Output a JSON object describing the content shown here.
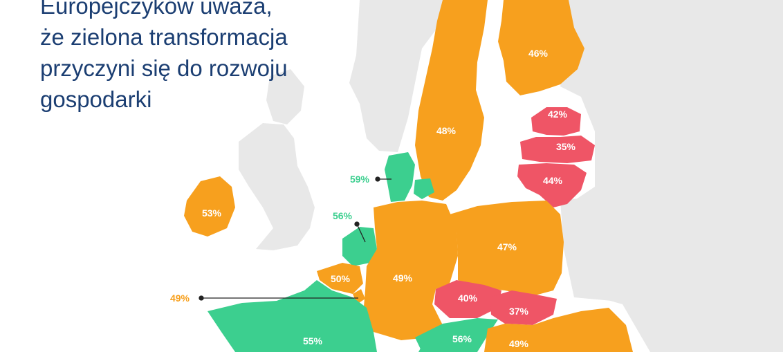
{
  "title_lines": [
    "Europejczyków uważa,",
    "że zielona transformacja",
    "przyczyni się do rozwoju",
    "gospodarki"
  ],
  "colors": {
    "orange": "#f7a01e",
    "red": "#ef5566",
    "green": "#3ccf8f",
    "land": "#e8e8e8",
    "sea": "#ffffff",
    "title": "#1b3e72"
  },
  "countries": [
    {
      "id": "finland",
      "label": "46%",
      "color": "orange"
    },
    {
      "id": "sweden",
      "label": "48%",
      "color": "orange"
    },
    {
      "id": "estonia",
      "label": "42%",
      "color": "red"
    },
    {
      "id": "latvia",
      "label": "35%",
      "color": "red"
    },
    {
      "id": "lithuania",
      "label": "44%",
      "color": "red"
    },
    {
      "id": "denmark",
      "label": "59%",
      "color": "green"
    },
    {
      "id": "ireland",
      "label": "53%",
      "color": "orange"
    },
    {
      "id": "netherlands",
      "label": "56%",
      "color": "green"
    },
    {
      "id": "belgium",
      "label": "50%",
      "color": "orange"
    },
    {
      "id": "luxembourg",
      "label": "49%",
      "color": "orange"
    },
    {
      "id": "germany",
      "label": "49%",
      "color": "orange"
    },
    {
      "id": "poland",
      "label": "47%",
      "color": "orange"
    },
    {
      "id": "czechia",
      "label": "40%",
      "color": "red"
    },
    {
      "id": "slovakia",
      "label": "37%",
      "color": "red"
    },
    {
      "id": "france",
      "label": "55%",
      "color": "green"
    },
    {
      "id": "austria",
      "label": "56%",
      "color": "green"
    },
    {
      "id": "hungary",
      "label": "49%",
      "color": "orange"
    },
    {
      "id": "romania",
      "label": "",
      "color": "orange"
    }
  ]
}
